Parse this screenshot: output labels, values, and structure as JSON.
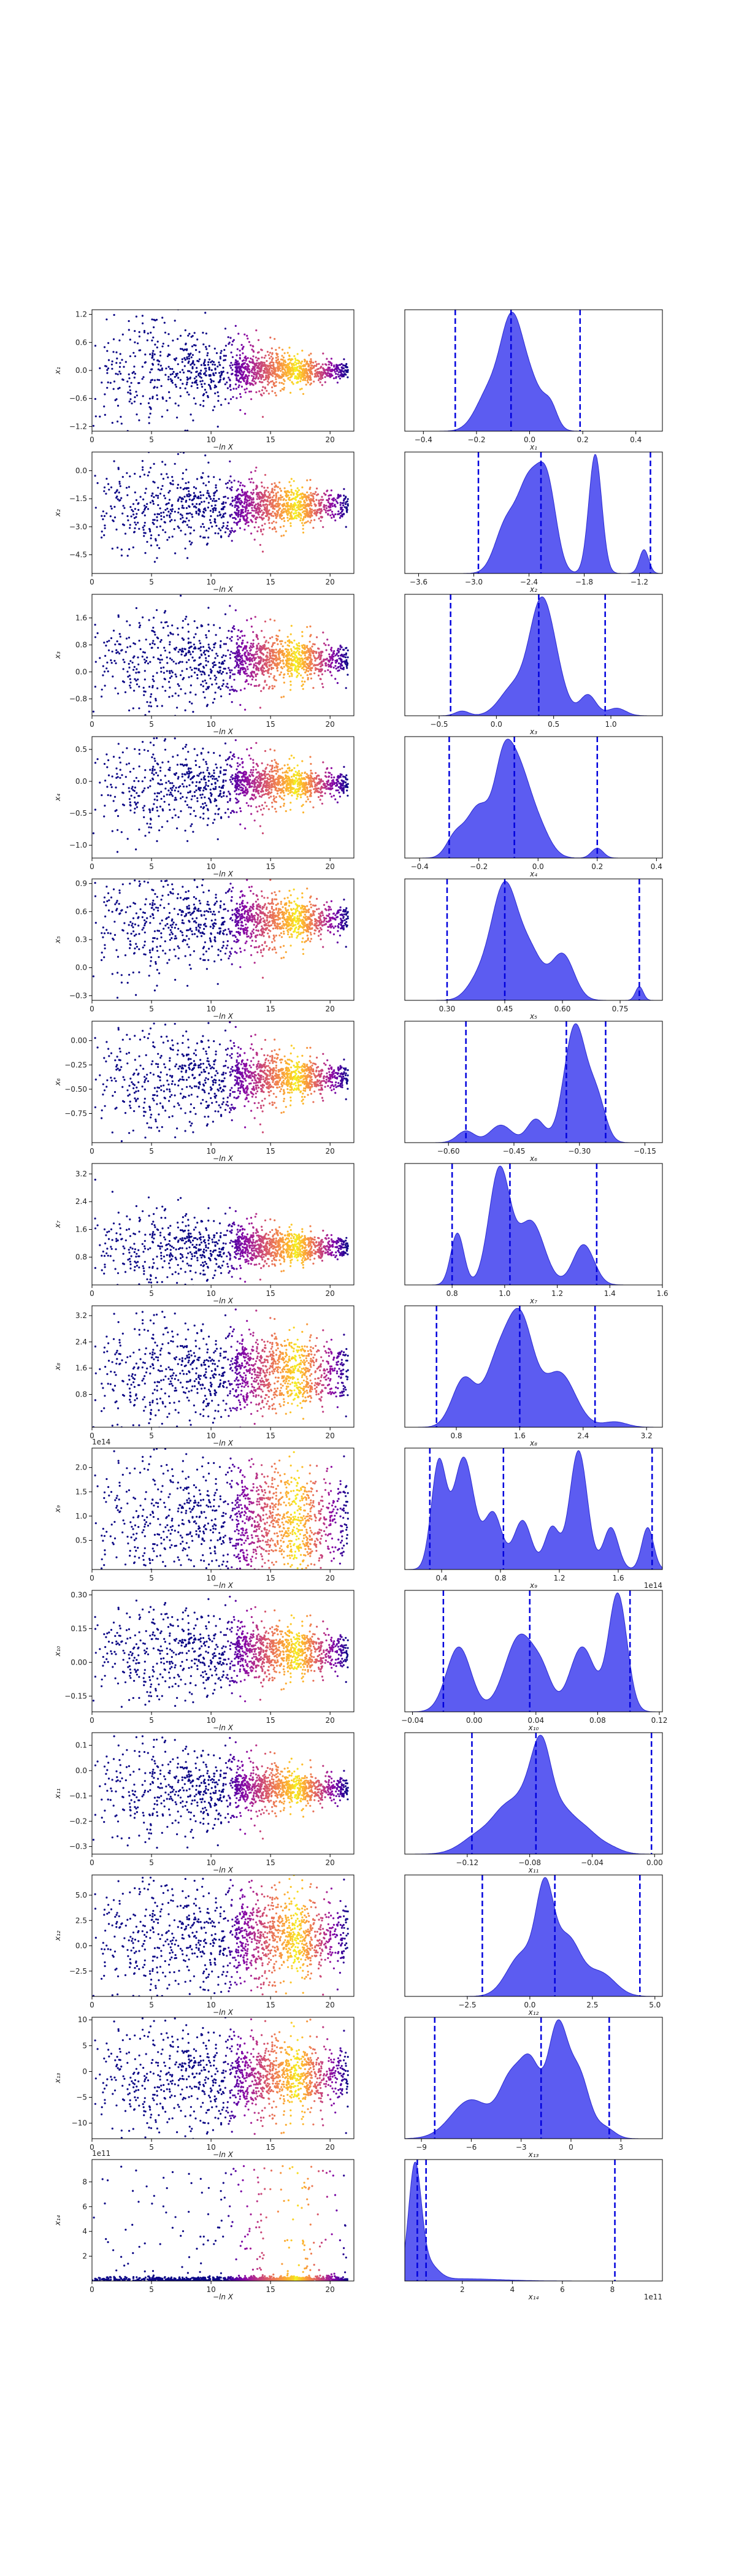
{
  "figure": {
    "title": "",
    "colors": {
      "scatter_colormap": [
        "#0d0887",
        "#5302a3",
        "#8b0aa5",
        "#b83289",
        "#db5c68",
        "#f48849",
        "#febd2a",
        "#f0f921"
      ],
      "kde_fill": "#4040ee",
      "kde_edge": "#2a2ad0",
      "quantile_line": "#0000dd"
    }
  },
  "chart_data": [
    {
      "param": "x1",
      "type": "scatter",
      "xlabel": "−ln X",
      "ylabel": "x₁",
      "xlim": [
        0,
        22
      ],
      "xticks": [
        "0",
        "5",
        "10",
        "15",
        "20"
      ],
      "ylim": [
        -1.3,
        1.3
      ],
      "yticks": [
        "−1.2",
        "−0.6",
        "0.0",
        "0.6",
        "1.2"
      ],
      "ytick_values": [
        -1.2,
        -0.6,
        0,
        0.6,
        1.2
      ],
      "center": 0.0,
      "spread_start": 0.7,
      "spread_end": 0.1,
      "bands": [
        -0.1,
        0.0,
        0.1
      ]
    },
    {
      "param": "x1",
      "type": "area",
      "xlabel": "x₁",
      "xlim": [
        -0.47,
        0.5
      ],
      "xticks": [
        "−0.4",
        "−0.2",
        "0.0",
        "0.2",
        "0.4"
      ],
      "xtick_values": [
        -0.4,
        -0.2,
        0,
        0.2,
        0.4
      ],
      "peaks": [
        [
          -0.15,
          0.45,
          0.05
        ],
        [
          -0.07,
          1.0,
          0.04
        ],
        [
          0.0,
          0.55,
          0.05
        ],
        [
          0.08,
          0.2,
          0.025
        ]
      ],
      "quantiles": [
        -0.28,
        -0.07,
        0.19
      ]
    },
    {
      "param": "x2",
      "type": "scatter",
      "xlabel": "−ln X",
      "ylabel": "x₂",
      "xlim": [
        0,
        22
      ],
      "xticks": [
        "0",
        "5",
        "10",
        "15",
        "20"
      ],
      "ylim": [
        -5.5,
        1.0
      ],
      "yticks": [
        "−4.5",
        "−3.0",
        "−1.5",
        "0.0"
      ],
      "ytick_values": [
        -4.5,
        -3,
        -1.5,
        0
      ],
      "center": -1.9,
      "spread_start": 1.4,
      "spread_end": 0.4,
      "bands": [
        -2.3,
        -1.9,
        -1.4
      ]
    },
    {
      "param": "x2",
      "type": "area",
      "xlabel": "x₂",
      "xlim": [
        -3.75,
        -0.95
      ],
      "xticks": [
        "−3.6",
        "−3.0",
        "−2.4",
        "−1.8",
        "−1.2"
      ],
      "xtick_values": [
        -3.6,
        -3,
        -2.4,
        -1.8,
        -1.2
      ],
      "peaks": [
        [
          -2.65,
          0.4,
          0.12
        ],
        [
          -2.4,
          0.72,
          0.12
        ],
        [
          -2.2,
          0.68,
          0.1
        ],
        [
          -1.68,
          1.0,
          0.07
        ],
        [
          -1.15,
          0.2,
          0.05
        ]
      ],
      "quantiles": [
        -2.95,
        -2.27,
        -1.08
      ]
    },
    {
      "param": "x3",
      "type": "scatter",
      "xlabel": "−ln X",
      "ylabel": "x₃",
      "xlim": [
        0,
        22
      ],
      "xticks": [
        "0",
        "5",
        "10",
        "15",
        "20"
      ],
      "ylim": [
        -1.3,
        2.3
      ],
      "yticks": [
        "−0.8",
        "0.0",
        "0.8",
        "1.6"
      ],
      "ytick_values": [
        -0.8,
        0,
        0.8,
        1.6
      ],
      "center": 0.35,
      "spread_start": 0.9,
      "spread_end": 0.3,
      "bands": [
        0.2,
        0.35,
        0.6
      ]
    },
    {
      "param": "x3",
      "type": "area",
      "xlabel": "x₃",
      "xlim": [
        -0.8,
        1.45
      ],
      "xticks": [
        "−0.5",
        "0.0",
        "0.5",
        "1.0"
      ],
      "xtick_values": [
        -0.5,
        0,
        0.5,
        1
      ],
      "peaks": [
        [
          -0.3,
          0.05,
          0.06
        ],
        [
          0.15,
          0.3,
          0.12
        ],
        [
          0.38,
          1.0,
          0.1
        ],
        [
          0.5,
          0.4,
          0.1
        ],
        [
          0.8,
          0.22,
          0.07
        ],
        [
          1.05,
          0.08,
          0.08
        ]
      ],
      "quantiles": [
        -0.4,
        0.37,
        0.95
      ]
    },
    {
      "param": "x4",
      "type": "scatter",
      "xlabel": "−ln X",
      "ylabel": "x₄",
      "xlim": [
        0,
        22
      ],
      "xticks": [
        "0",
        "5",
        "10",
        "15",
        "20"
      ],
      "ylim": [
        -1.2,
        0.7
      ],
      "yticks": [
        "−1.0",
        "−0.5",
        "0.0",
        "0.5"
      ],
      "ytick_values": [
        -1,
        -0.5,
        0,
        0.5
      ],
      "center": -0.05,
      "spread_start": 0.45,
      "spread_end": 0.12,
      "bands": [
        -0.1,
        -0.05,
        0.05
      ]
    },
    {
      "param": "x4",
      "type": "area",
      "xlabel": "x₄",
      "xlim": [
        -0.45,
        0.42
      ],
      "xticks": [
        "−0.4",
        "−0.2",
        "0.0",
        "0.2",
        "0.4"
      ],
      "xtick_values": [
        -0.4,
        -0.2,
        0,
        0.2,
        0.4
      ],
      "peaks": [
        [
          -0.28,
          0.25,
          0.03
        ],
        [
          -0.2,
          0.62,
          0.04
        ],
        [
          -0.12,
          0.8,
          0.03
        ],
        [
          -0.07,
          1.0,
          0.04
        ],
        [
          0.0,
          0.35,
          0.04
        ],
        [
          0.2,
          0.12,
          0.02
        ]
      ],
      "quantiles": [
        -0.3,
        -0.08,
        0.2
      ]
    },
    {
      "param": "x5",
      "type": "scatter",
      "xlabel": "−ln X",
      "ylabel": "x₅",
      "xlim": [
        0,
        22
      ],
      "xticks": [
        "0",
        "5",
        "10",
        "15",
        "20"
      ],
      "ylim": [
        -0.35,
        0.95
      ],
      "yticks": [
        "−0.3",
        "0.0",
        "0.3",
        "0.6",
        "0.9"
      ],
      "ytick_values": [
        -0.3,
        0,
        0.3,
        0.6,
        0.9
      ],
      "center": 0.5,
      "spread_start": 0.35,
      "spread_end": 0.1,
      "bands": [
        0.45,
        0.52,
        0.6
      ]
    },
    {
      "param": "x5",
      "type": "area",
      "xlabel": "x₅",
      "xlim": [
        0.19,
        0.86
      ],
      "xticks": [
        "0.30",
        "0.45",
        "0.60",
        "0.75"
      ],
      "xtick_values": [
        0.3,
        0.45,
        0.6,
        0.75
      ],
      "peaks": [
        [
          0.38,
          0.15,
          0.03
        ],
        [
          0.45,
          1.0,
          0.035
        ],
        [
          0.52,
          0.35,
          0.03
        ],
        [
          0.6,
          0.4,
          0.03
        ],
        [
          0.8,
          0.12,
          0.01
        ]
      ],
      "quantiles": [
        0.3,
        0.45,
        0.8
      ]
    },
    {
      "param": "x6",
      "type": "scatter",
      "xlabel": "−ln X",
      "ylabel": "x₆",
      "xlim": [
        0,
        22
      ],
      "xticks": [
        "0",
        "5",
        "10",
        "15",
        "20"
      ],
      "ylim": [
        -1.05,
        0.2
      ],
      "yticks": [
        "−0.75",
        "−0.50",
        "−0.25",
        "0.00"
      ],
      "ytick_values": [
        -0.75,
        -0.5,
        -0.25,
        0
      ],
      "center": -0.38,
      "spread_start": 0.35,
      "spread_end": 0.08,
      "bands": [
        -0.45,
        -0.38,
        -0.3
      ]
    },
    {
      "param": "x6",
      "type": "area",
      "xlabel": "x₆",
      "xlim": [
        -0.7,
        -0.11
      ],
      "xticks": [
        "−0.60",
        "−0.45",
        "−0.30",
        "−0.15"
      ],
      "xtick_values": [
        -0.6,
        -0.45,
        -0.3,
        -0.15
      ],
      "peaks": [
        [
          -0.56,
          0.1,
          0.02
        ],
        [
          -0.48,
          0.15,
          0.025
        ],
        [
          -0.4,
          0.2,
          0.02
        ],
        [
          -0.31,
          1.0,
          0.025
        ],
        [
          -0.26,
          0.35,
          0.02
        ]
      ],
      "quantiles": [
        -0.56,
        -0.33,
        -0.24
      ]
    },
    {
      "param": "x7",
      "type": "scatter",
      "xlabel": "−ln X",
      "ylabel": "x₇",
      "xlim": [
        0,
        22
      ],
      "xticks": [
        "0",
        "5",
        "10",
        "15",
        "20"
      ],
      "ylim": [
        0.0,
        3.5
      ],
      "yticks": [
        "0.8",
        "1.6",
        "2.4",
        "3.2"
      ],
      "ytick_values": [
        0.8,
        1.6,
        2.4,
        3.2
      ],
      "center": 1.1,
      "spread_start": 0.7,
      "spread_end": 0.15,
      "bands": [
        0.9,
        1.1,
        1.3
      ]
    },
    {
      "param": "x7",
      "type": "area",
      "xlabel": "x₇",
      "xlim": [
        0.62,
        1.6
      ],
      "xticks": [
        "0.8",
        "1.0",
        "1.2",
        "1.4",
        "1.6"
      ],
      "xtick_values": [
        0.8,
        1,
        1.2,
        1.4,
        1.6
      ],
      "peaks": [
        [
          0.82,
          0.45,
          0.025
        ],
        [
          0.98,
          1.0,
          0.04
        ],
        [
          1.1,
          0.55,
          0.05
        ],
        [
          1.3,
          0.35,
          0.04
        ]
      ],
      "quantiles": [
        0.8,
        1.02,
        1.35
      ]
    },
    {
      "param": "x8",
      "type": "scatter",
      "xlabel": "−ln X",
      "ylabel": "x₈",
      "xlim": [
        0,
        22
      ],
      "xticks": [
        "0",
        "5",
        "10",
        "15",
        "20"
      ],
      "ylim": [
        -0.2,
        3.5
      ],
      "yticks": [
        "0.8",
        "1.6",
        "2.4",
        "3.2"
      ],
      "ytick_values": [
        0.8,
        1.6,
        2.4,
        3.2
      ],
      "center": 1.5,
      "spread_start": 1.0,
      "spread_end": 0.5,
      "bands": [
        0.9,
        1.5,
        2.0
      ]
    },
    {
      "param": "x8",
      "type": "area",
      "xlabel": "x₈",
      "xlim": [
        0.15,
        3.4
      ],
      "xticks": [
        "0.8",
        "1.6",
        "2.4",
        "3.2"
      ],
      "xtick_values": [
        0.8,
        1.6,
        2.4,
        3.2
      ],
      "peaks": [
        [
          0.9,
          0.45,
          0.15
        ],
        [
          1.3,
          0.5,
          0.15
        ],
        [
          1.6,
          1.0,
          0.17
        ],
        [
          2.1,
          0.5,
          0.2
        ],
        [
          2.8,
          0.05,
          0.15
        ]
      ],
      "quantiles": [
        0.55,
        1.6,
        2.55
      ]
    },
    {
      "param": "x9",
      "type": "scatter",
      "xlabel": "−ln X",
      "ylabel": "x₉",
      "xlim": [
        0,
        22
      ],
      "xticks": [
        "0",
        "5",
        "10",
        "15",
        "20"
      ],
      "ylim": [
        -0.1,
        2.4
      ],
      "yticks": [
        "0.5",
        "1.0",
        "1.5",
        "2.0"
      ],
      "ytick_values": [
        0.5,
        1,
        1.5,
        2
      ],
      "offset_label": "1e14",
      "center": 0.9,
      "spread_start": 0.8,
      "spread_end": 0.6,
      "bands": [
        0.4,
        0.9,
        1.4
      ]
    },
    {
      "param": "x9",
      "type": "area",
      "xlabel": "x₉",
      "xlim": [
        0.15,
        1.9
      ],
      "xticks": [
        "0.4",
        "0.8",
        "1.2",
        "1.6"
      ],
      "xtick_values": [
        0.4,
        0.8,
        1.2,
        1.6
      ],
      "offset_label": "1e14",
      "peaks": [
        [
          0.38,
          0.75,
          0.05
        ],
        [
          0.55,
          0.8,
          0.07
        ],
        [
          0.75,
          0.4,
          0.06
        ],
        [
          0.95,
          0.35,
          0.06
        ],
        [
          1.15,
          0.3,
          0.05
        ],
        [
          1.33,
          0.85,
          0.06
        ],
        [
          1.55,
          0.3,
          0.05
        ],
        [
          1.8,
          0.3,
          0.04
        ]
      ],
      "quantiles": [
        0.32,
        0.82,
        1.83
      ]
    },
    {
      "param": "x10",
      "type": "scatter",
      "xlabel": "−ln X",
      "ylabel": "x₁₀",
      "xlim": [
        0,
        22
      ],
      "xticks": [
        "0",
        "5",
        "10",
        "15",
        "20"
      ],
      "ylim": [
        -0.22,
        0.32
      ],
      "yticks": [
        "−0.15",
        "0.00",
        "0.15",
        "0.30"
      ],
      "ytick_values": [
        -0.15,
        0,
        0.15,
        0.3
      ],
      "center": 0.05,
      "spread_start": 0.13,
      "spread_end": 0.05,
      "bands": [
        0.0,
        0.05,
        0.09
      ]
    },
    {
      "param": "x10",
      "type": "area",
      "xlabel": "x₁₀",
      "xlim": [
        -0.045,
        0.122
      ],
      "xticks": [
        "−0.04",
        "0.00",
        "0.04",
        "0.08",
        "0.12"
      ],
      "xtick_values": [
        -0.04,
        0,
        0.04,
        0.08,
        0.12
      ],
      "peaks": [
        [
          -0.01,
          0.55,
          0.008
        ],
        [
          0.03,
          0.65,
          0.01
        ],
        [
          0.045,
          0.2,
          0.006
        ],
        [
          0.07,
          0.55,
          0.008
        ],
        [
          0.093,
          1.0,
          0.006
        ]
      ],
      "quantiles": [
        -0.02,
        0.036,
        0.101
      ]
    },
    {
      "param": "x11",
      "type": "scatter",
      "xlabel": "−ln X",
      "ylabel": "x₁₁",
      "xlim": [
        0,
        22
      ],
      "xticks": [
        "0",
        "5",
        "10",
        "15",
        "20"
      ],
      "ylim": [
        -0.33,
        0.15
      ],
      "yticks": [
        "−0.3",
        "−0.2",
        "−0.1",
        "0.0",
        "0.1"
      ],
      "ytick_values": [
        -0.3,
        -0.2,
        -0.1,
        0,
        0.1
      ],
      "center": -0.07,
      "spread_start": 0.12,
      "spread_end": 0.03,
      "bands": [
        -0.09,
        -0.07,
        -0.05
      ]
    },
    {
      "param": "x11",
      "type": "area",
      "xlabel": "x₁₁",
      "xlim": [
        -0.16,
        0.005
      ],
      "xticks": [
        "−0.12",
        "−0.08",
        "−0.04",
        "0.00"
      ],
      "xtick_values": [
        -0.12,
        -0.08,
        -0.04,
        0
      ],
      "peaks": [
        [
          -0.11,
          0.3,
          0.012
        ],
        [
          -0.095,
          0.45,
          0.008
        ],
        [
          -0.08,
          0.75,
          0.008
        ],
        [
          -0.072,
          1.0,
          0.006
        ],
        [
          -0.06,
          0.55,
          0.008
        ],
        [
          -0.045,
          0.3,
          0.008
        ],
        [
          -0.03,
          0.1,
          0.008
        ]
      ],
      "quantiles": [
        -0.117,
        -0.076,
        -0.002
      ]
    },
    {
      "param": "x12",
      "type": "scatter",
      "xlabel": "−ln X",
      "ylabel": "x₁₂",
      "xlim": [
        0,
        22
      ],
      "xticks": [
        "0",
        "5",
        "10",
        "15",
        "20"
      ],
      "ylim": [
        -5.0,
        7.0
      ],
      "yticks": [
        "−2.5",
        "0.0",
        "2.5",
        "5.0"
      ],
      "ytick_values": [
        -2.5,
        0,
        2.5,
        5
      ],
      "center": 1.0,
      "spread_start": 3.5,
      "spread_end": 2.5,
      "bands": [
        -0.5,
        1.0,
        2.5
      ]
    },
    {
      "param": "x12",
      "type": "area",
      "xlabel": "x₁₂",
      "xlim": [
        -5.0,
        5.3
      ],
      "xticks": [
        "−2.5",
        "0.0",
        "2.5",
        "5.0"
      ],
      "xtick_values": [
        -2.5,
        0,
        2.5,
        5
      ],
      "peaks": [
        [
          -0.3,
          0.45,
          0.6
        ],
        [
          0.6,
          1.0,
          0.35
        ],
        [
          1.5,
          0.6,
          0.5
        ],
        [
          2.8,
          0.25,
          0.6
        ]
      ],
      "quantiles": [
        -1.9,
        1.0,
        4.4
      ]
    },
    {
      "param": "x13",
      "type": "scatter",
      "xlabel": "−ln X",
      "ylabel": "x₁₃",
      "xlim": [
        0,
        22
      ],
      "xticks": [
        "0",
        "5",
        "10",
        "15",
        "20"
      ],
      "ylim": [
        -13.0,
        10.5
      ],
      "yticks": [
        "−10",
        "−5",
        "0",
        "5",
        "10"
      ],
      "ytick_values": [
        -10,
        -5,
        0,
        5,
        10
      ],
      "center": -1.0,
      "spread_start": 6.0,
      "spread_end": 4.0,
      "bands": [
        -3.0,
        -1.0,
        1.5
      ]
    },
    {
      "param": "x13",
      "type": "area",
      "xlabel": "x₁₃",
      "xlim": [
        -10.0,
        5.5
      ],
      "xticks": [
        "−9",
        "−6",
        "−3",
        "0",
        "3"
      ],
      "xtick_values": [
        -9,
        -6,
        -3,
        0,
        3
      ],
      "peaks": [
        [
          -6.0,
          0.35,
          1.2
        ],
        [
          -3.6,
          0.5,
          0.7
        ],
        [
          -2.4,
          0.6,
          0.6
        ],
        [
          -0.8,
          1.0,
          0.6
        ],
        [
          0.5,
          0.55,
          0.6
        ],
        [
          2.0,
          0.1,
          0.6
        ]
      ],
      "quantiles": [
        -8.2,
        -1.8,
        2.3
      ]
    },
    {
      "param": "x14",
      "type": "scatter",
      "xlabel": "−ln X",
      "ylabel": "x₁₄",
      "xlim": [
        0,
        22
      ],
      "xticks": [
        "0",
        "5",
        "10",
        "15",
        "20"
      ],
      "ylim": [
        0.0,
        9.8
      ],
      "yticks": [
        "2",
        "4",
        "6",
        "8"
      ],
      "ytick_values": [
        2,
        4,
        6,
        8
      ],
      "offset_label": "1e11",
      "center": 0.1,
      "spread_start": 0.2,
      "spread_end": 0.2,
      "bands": [
        0.05,
        0.1,
        0.2
      ],
      "skewed": true
    },
    {
      "param": "x14",
      "type": "area",
      "xlabel": "x₁₄",
      "xlim": [
        -0.3,
        10.0
      ],
      "xticks": [
        "2",
        "4",
        "6",
        "8"
      ],
      "xtick_values": [
        2,
        4,
        6,
        8
      ],
      "offset_label": "1e11",
      "peaks": [
        [
          0.1,
          1.0,
          0.25
        ],
        [
          0.6,
          0.15,
          0.4
        ],
        [
          2.0,
          0.02,
          1.5
        ]
      ],
      "quantiles": [
        0.2,
        0.55,
        8.1
      ]
    }
  ]
}
